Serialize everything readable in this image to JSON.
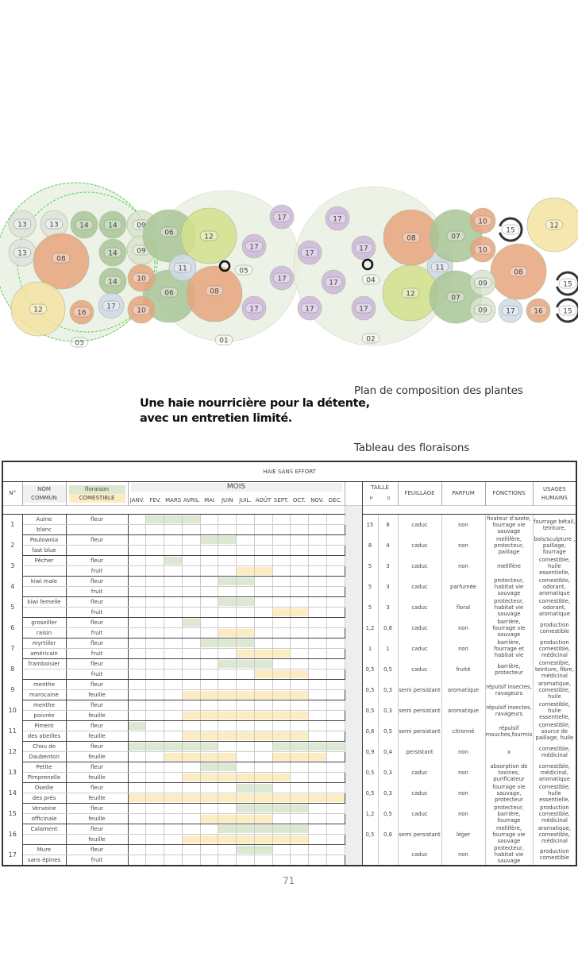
{
  "headline": {
    "line1": "Une haie nourricière pour la détente,",
    "line2": "avec un entretien limité."
  },
  "plan_caption": "Plan de composition des plantes",
  "table_caption": "Tableau des floraisons",
  "page_number": "71",
  "plan": {
    "labels": [
      "03",
      "01",
      "02",
      "13",
      "13",
      "13",
      "14",
      "14",
      "14",
      "14",
      "08",
      "12",
      "16",
      "17",
      "09",
      "09",
      "06",
      "06",
      "10",
      "10",
      "12",
      "11",
      "08",
      "05",
      "17",
      "17",
      "17",
      "17",
      "17",
      "17",
      "17",
      "17",
      "17",
      "17",
      "04",
      "08",
      "12",
      "11",
      "07",
      "07",
      "10",
      "10",
      "15",
      "15",
      "15",
      "12",
      "08",
      "09",
      "09",
      "17",
      "16"
    ]
  },
  "colors": {
    "flower_bar": "#dce8d2",
    "edible_bar": "#fcecc2"
  },
  "table": {
    "title": "HAIE SANS EFFORT",
    "headers": {
      "num": "N°",
      "name1": "NOM",
      "name2": "COMMUN",
      "type1": "floraison",
      "type2": "COMESTIBLE",
      "months_title": "MOIS",
      "months": [
        "JANV.",
        "FEV.",
        "MARS",
        "AVRIL",
        "MAI",
        "JUIN",
        "JUIL.",
        "AOÛT",
        "SEPT.",
        "OCT.",
        "NOV.",
        "DÉC."
      ],
      "size": "TAILLE",
      "h": "H",
      "d": "D",
      "foliage": "FEUILLAGE",
      "scent": "PARFUM",
      "functions": "FONCTIONS",
      "uses1": "USAGES",
      "uses2": "HUMAINS"
    },
    "rows": [
      {
        "n": "1",
        "name": [
          "Aulne",
          "blanc"
        ],
        "types": [
          "fleur",
          ""
        ],
        "bars": [
          [
            [
              1,
              4
            ]
          ],
          []
        ],
        "h": "15",
        "d": "8",
        "foliage": "caduc",
        "scent": "non",
        "functions": "fixateur d'azote, fourrage vie sauvage",
        "uses": "fourrage bétail, teinture,"
      },
      {
        "n": "2",
        "name": [
          "Paulownia",
          "fast blue"
        ],
        "types": [
          "fleur",
          ""
        ],
        "bars": [
          [
            [
              4,
              6
            ]
          ],
          []
        ],
        "h": "8",
        "d": "4",
        "foliage": "caduc",
        "scent": "non",
        "functions": "mellifère, protecteur, paillage",
        "uses": "bois/sculpture , paillage, fourrage"
      },
      {
        "n": "3",
        "name": [
          "Pêcher",
          ""
        ],
        "types": [
          "fleur",
          "fruit"
        ],
        "bars": [
          [
            [
              2,
              3
            ]
          ],
          [
            [
              6,
              8
            ]
          ]
        ],
        "h": "5",
        "d": "3",
        "foliage": "caduc",
        "scent": "non",
        "functions": "mellifère",
        "uses": "comestible, huile essentielle,"
      },
      {
        "n": "4",
        "name": [
          "kiwi male",
          ""
        ],
        "types": [
          "fleur",
          "fruit"
        ],
        "bars": [
          [
            [
              5,
              7
            ]
          ],
          []
        ],
        "h": "5",
        "d": "3",
        "foliage": "caduc",
        "scent": "parfumée",
        "functions": "protecteur, habitat vie sauvage",
        "uses": "comestible, odorant, aromatique"
      },
      {
        "n": "5",
        "name": [
          "kiwi femelle",
          ""
        ],
        "types": [
          "fleur",
          "fruit"
        ],
        "bars": [
          [
            [
              5,
              7
            ]
          ],
          [
            [
              8,
              10
            ]
          ]
        ],
        "h": "5",
        "d": "3",
        "foliage": "caduc",
        "scent": "floral",
        "functions": "protecteur, habitat vie sauvage",
        "uses": "comestible, odorant, aromatique"
      },
      {
        "n": "6",
        "name": [
          "groseiller",
          "raisin"
        ],
        "types": [
          "fleur",
          "fruit"
        ],
        "bars": [
          [
            [
              3,
              4
            ]
          ],
          [
            [
              5,
              7
            ]
          ]
        ],
        "h": "1,2",
        "d": "0,8",
        "foliage": "caduc",
        "scent": "non",
        "functions": "barrière, fourrage vie sauvage",
        "uses": "production comestible"
      },
      {
        "n": "7",
        "name": [
          "myrtiller",
          "américain"
        ],
        "types": [
          "fleur",
          "fruit"
        ],
        "bars": [
          [
            [
              4,
              7
            ]
          ],
          [
            [
              6,
              9
            ]
          ]
        ],
        "h": "1",
        "d": "1",
        "foliage": "caduc",
        "scent": "non",
        "functions": "barrière, fourrage et habitat vie",
        "uses": "production comestible, médicinal"
      },
      {
        "n": "8",
        "name": [
          "framboisier",
          ""
        ],
        "types": [
          "fleur",
          "fruit"
        ],
        "bars": [
          [
            [
              5,
              8
            ]
          ],
          [
            [
              7,
              10
            ]
          ]
        ],
        "h": "0,5",
        "d": "0,5",
        "foliage": "caduc",
        "scent": "fruité",
        "functions": "barrière, protecteur",
        "uses": "comestible, teinture, fibre, médicinal"
      },
      {
        "n": "9",
        "name": [
          "menthe",
          "marocaine"
        ],
        "types": [
          "fleur",
          "feuille"
        ],
        "bars": [
          [],
          [
            [
              3,
              10
            ]
          ]
        ],
        "h": "0,5",
        "d": "0,3",
        "foliage": "semi persistant",
        "scent": "aromatique",
        "functions": "répulsif insectes, ravageurs",
        "uses": "aromatique, comestible, huile"
      },
      {
        "n": "10",
        "name": [
          "menthe",
          "poivrée"
        ],
        "types": [
          "fleur",
          "feuille"
        ],
        "bars": [
          [],
          [
            [
              3,
              10
            ]
          ]
        ],
        "h": "0,5",
        "d": "0,3",
        "foliage": "semi persistant",
        "scent": "aromatique",
        "functions": "répulsif insectes, ravageurs",
        "uses": "comestible, huile essentielle,"
      },
      {
        "n": "11",
        "name": [
          "Piment",
          "des abeilles"
        ],
        "types": [
          "fleur",
          "feuille"
        ],
        "bars": [
          [
            [
              0,
              1
            ]
          ],
          [
            [
              3,
              10
            ]
          ]
        ],
        "h": "0,6",
        "d": "0,5",
        "foliage": "semi persistant",
        "scent": "citronné",
        "functions": "répulsif mouches,fourmis",
        "uses": "comestible, source de paillage, huile"
      },
      {
        "n": "12",
        "name": [
          "Chou de",
          "Daubenton"
        ],
        "types": [
          "fleur",
          "feuille"
        ],
        "bars": [
          [
            [
              0,
              5
            ],
            [
              8,
              12
            ]
          ],
          [
            [
              2,
              6
            ],
            [
              8,
              11
            ]
          ]
        ],
        "h": "0,9",
        "d": "0,4",
        "foliage": "persistant",
        "scent": "non",
        "functions": "x",
        "uses": "comestible, médicinal"
      },
      {
        "n": "13",
        "name": [
          "Petite",
          "Pimprenelle"
        ],
        "types": [
          "fleur",
          "feuille"
        ],
        "bars": [
          [
            [
              4,
              6
            ]
          ],
          [
            [
              3,
              9
            ]
          ]
        ],
        "h": "0,5",
        "d": "0,3",
        "foliage": "caduc",
        "scent": "non",
        "functions": "absorption de toxines, purificateur",
        "uses": "comestible, médicinal, aromatique"
      },
      {
        "n": "14",
        "name": [
          "Oseille",
          "des prés"
        ],
        "types": [
          "fleur",
          "feuille"
        ],
        "bars": [
          [
            [
              6,
              8
            ]
          ],
          [
            [
              0,
              12
            ]
          ]
        ],
        "h": "0,5",
        "d": "0,3",
        "foliage": "caduc",
        "scent": "non",
        "functions": "fourrage vie sauvage, protecteur",
        "uses": "comestible, huile essentielle,"
      },
      {
        "n": "15",
        "name": [
          "Verveine",
          "officinale"
        ],
        "types": [
          "fleur",
          "feuille"
        ],
        "bars": [
          [
            [
              6,
              10
            ]
          ],
          [
            [
              4,
              8
            ]
          ]
        ],
        "h": "1,2",
        "d": "0,5",
        "foliage": "caduc",
        "scent": "non",
        "functions": "protecteur, barrière, fourrage",
        "uses": "production comestible, médicinal"
      },
      {
        "n": "16",
        "name": [
          "Calament",
          ""
        ],
        "types": [
          "fleur",
          "feuille"
        ],
        "bars": [
          [
            [
              5,
              10
            ]
          ],
          [
            [
              3,
              10
            ]
          ]
        ],
        "h": "0,5",
        "d": "0,8",
        "foliage": "semi persistant",
        "scent": "léger",
        "functions": "mellifère, fourrage vie sauvage",
        "uses": "aromatique, comestible, médicinal"
      },
      {
        "n": "17",
        "name": [
          "Mure",
          "sans épines"
        ],
        "types": [
          "fleur",
          "fruit"
        ],
        "bars": [
          [
            [
              6,
              8
            ]
          ],
          []
        ],
        "h": "",
        "d": "",
        "foliage": "caduc",
        "scent": "non",
        "functions": "protecteur, habitat vie sauvage",
        "uses": "production comestible"
      }
    ]
  }
}
